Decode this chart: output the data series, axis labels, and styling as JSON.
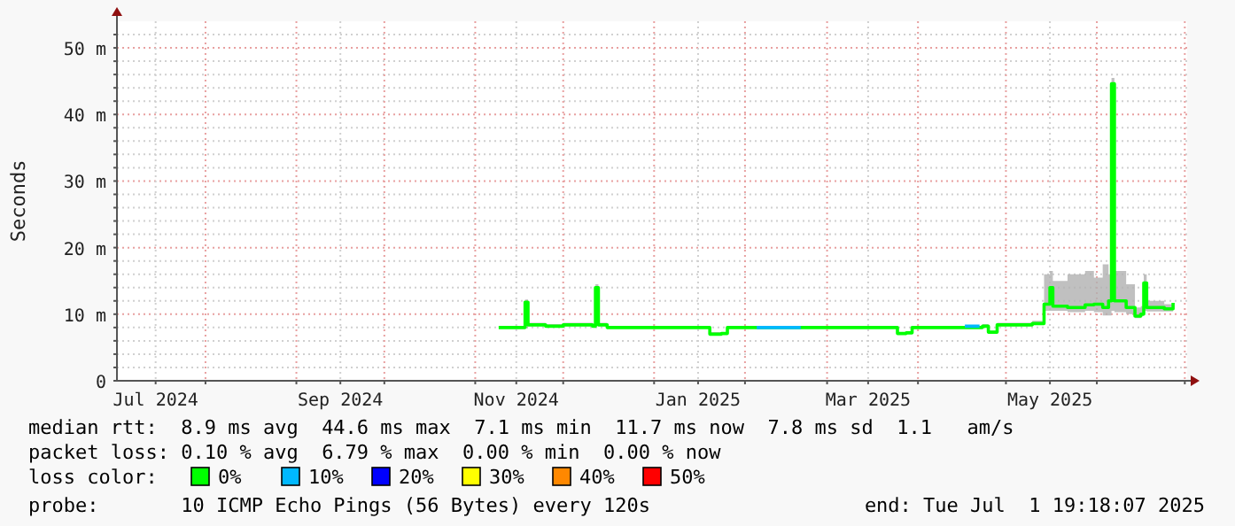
{
  "chart_data": {
    "type": "step",
    "ylabel": "Seconds",
    "xlim": [
      "2024-07-01T19:18",
      "2025-07-01T19:18"
    ],
    "xticks": [
      {
        "value": "2024-07-15",
        "label": "Jul 2024"
      },
      {
        "value": "2024-08-01",
        "label": null
      },
      {
        "value": "2024-09-01",
        "label": null
      },
      {
        "value": "2024-09-16",
        "label": "Sep 2024"
      },
      {
        "value": "2024-10-01",
        "label": null
      },
      {
        "value": "2024-11-01",
        "label": null
      },
      {
        "value": "2024-11-15",
        "label": "Nov 2024"
      },
      {
        "value": "2024-12-01",
        "label": null
      },
      {
        "value": "2025-01-01",
        "label": null
      },
      {
        "value": "2025-01-16",
        "label": "Jan 2025"
      },
      {
        "value": "2025-02-01",
        "label": null
      },
      {
        "value": "2025-03-01",
        "label": null
      },
      {
        "value": "2025-03-15",
        "label": "Mar 2025"
      },
      {
        "value": "2025-04-01",
        "label": null
      },
      {
        "value": "2025-05-01",
        "label": null
      },
      {
        "value": "2025-05-16",
        "label": "May 2025"
      },
      {
        "value": "2025-06-01",
        "label": null
      },
      {
        "value": "2025-07-01",
        "label": null
      }
    ],
    "ylim": [
      0,
      54
    ],
    "yticks": [
      0,
      {
        "value": 2,
        "label": null
      },
      {
        "value": 4,
        "label": null
      },
      {
        "value": 6,
        "label": null
      },
      {
        "value": 8,
        "label": null
      },
      {
        "value": 10,
        "label": "10 m"
      },
      {
        "value": 12,
        "label": null
      },
      {
        "value": 14,
        "label": null
      },
      {
        "value": 16,
        "label": null
      },
      {
        "value": 18,
        "label": null
      },
      {
        "value": 20,
        "label": "20 m"
      },
      {
        "value": 22,
        "label": null
      },
      {
        "value": 24,
        "label": null
      },
      {
        "value": 26,
        "label": null
      },
      {
        "value": 28,
        "label": null
      },
      {
        "value": 30,
        "label": "30 m"
      },
      {
        "value": 32,
        "label": null
      },
      {
        "value": 34,
        "label": null
      },
      {
        "value": 36,
        "label": null
      },
      {
        "value": 38,
        "label": null
      },
      {
        "value": 40,
        "label": "40 m"
      },
      {
        "value": 42,
        "label": null
      },
      {
        "value": 44,
        "label": null
      },
      {
        "value": 46,
        "label": null
      },
      {
        "value": 48,
        "label": null
      },
      {
        "value": 50,
        "label": "50 m"
      },
      {
        "value": 52,
        "label": null
      }
    ],
    "grid": true,
    "legend": "bottom",
    "legend_title": "loss color:",
    "series": [
      {
        "name": "0%",
        "color": "#00ff00",
        "x": [
          "2024-11-09",
          "2024-11-17",
          "2024-11-18",
          "2024-11-19",
          "2024-11-25",
          "2024-12-01",
          "2024-12-11",
          "2024-12-12",
          "2024-12-13",
          "2024-12-16",
          "2025-01-15",
          "2025-01-20",
          "2025-01-24",
          "2025-01-26",
          "2025-03-02",
          "2025-03-24",
          "2025-03-25",
          "2025-03-28",
          "2025-03-30",
          "2025-04-23",
          "2025-04-25",
          "2025-04-28",
          "2025-05-10",
          "2025-05-13",
          "2025-05-14",
          "2025-05-16",
          "2025-05-17",
          "2025-05-22",
          "2025-05-28",
          "2025-05-31",
          "2025-06-03",
          "2025-06-05",
          "2025-06-06",
          "2025-06-07",
          "2025-06-11",
          "2025-06-14",
          "2025-06-16",
          "2025-06-17",
          "2025-06-18",
          "2025-06-24",
          "2025-06-27"
        ],
        "values": [
          8,
          8,
          11.8,
          8.4,
          8.2,
          8.4,
          8.2,
          14,
          8.4,
          8,
          8,
          7,
          7.1,
          8,
          8,
          8,
          7.1,
          7.2,
          8,
          8.2,
          7.3,
          8.4,
          8.6,
          8.6,
          11.5,
          14,
          11.2,
          11,
          11.4,
          11.5,
          11,
          12,
          44.6,
          12,
          11,
          9.7,
          10,
          14.7,
          11,
          10.8,
          11.7
        ],
        "lower": [
          7.9,
          7.9,
          7.9,
          8.2,
          8,
          8.2,
          8,
          8.2,
          8.2,
          7.9,
          7.9,
          6.9,
          7,
          7.9,
          7.9,
          7.9,
          7,
          7.1,
          7.9,
          8,
          7.2,
          8.2,
          8.4,
          8.4,
          10.5,
          10.5,
          10.5,
          10.3,
          10.5,
          10.3,
          9.8,
          9.8,
          10.5,
          10.3,
          10,
          9.4,
          9.7,
          10.5,
          10.4,
          10.4,
          11.3
        ],
        "upper": [
          8.2,
          8.2,
          12.2,
          8.7,
          8.5,
          8.7,
          8.5,
          14.5,
          8.7,
          8.2,
          8.2,
          7.3,
          7.3,
          8.2,
          8.2,
          8.2,
          7.3,
          7.4,
          8.2,
          8.5,
          7.5,
          8.7,
          9,
          9,
          16,
          16.5,
          15,
          16,
          16.5,
          15.5,
          17.5,
          16,
          45.5,
          16.5,
          14.5,
          11,
          11.2,
          16,
          12,
          11.5,
          12.2
        ]
      },
      {
        "name": "10%",
        "color": "#00b8ff",
        "x": [
          "2025-02-05",
          "2025-02-20",
          "2025-02-21",
          "2025-04-17",
          "2025-04-22"
        ],
        "values": [
          8,
          8,
          null,
          8.2,
          8.2
        ]
      },
      {
        "name": "20%",
        "color": "#0000ff"
      },
      {
        "name": "30%",
        "color": "#ffff00"
      },
      {
        "name": "40%",
        "color": "#ff8800"
      },
      {
        "name": "50%",
        "color": "#ff0000"
      }
    ],
    "annotations": [
      "median rtt:  8.9 ms avg  44.6 ms max  7.1 ms min  11.7 ms now  7.8 ms sd  1.1   am/s",
      "packet loss: 0.10 % avg  6.79 % max  0.00 % min  0.00 % now",
      "probe:       10 ICMP Echo Pings (56 Bytes) every 120s",
      "end: Tue Jul  1 19:18:07 2025"
    ]
  }
}
